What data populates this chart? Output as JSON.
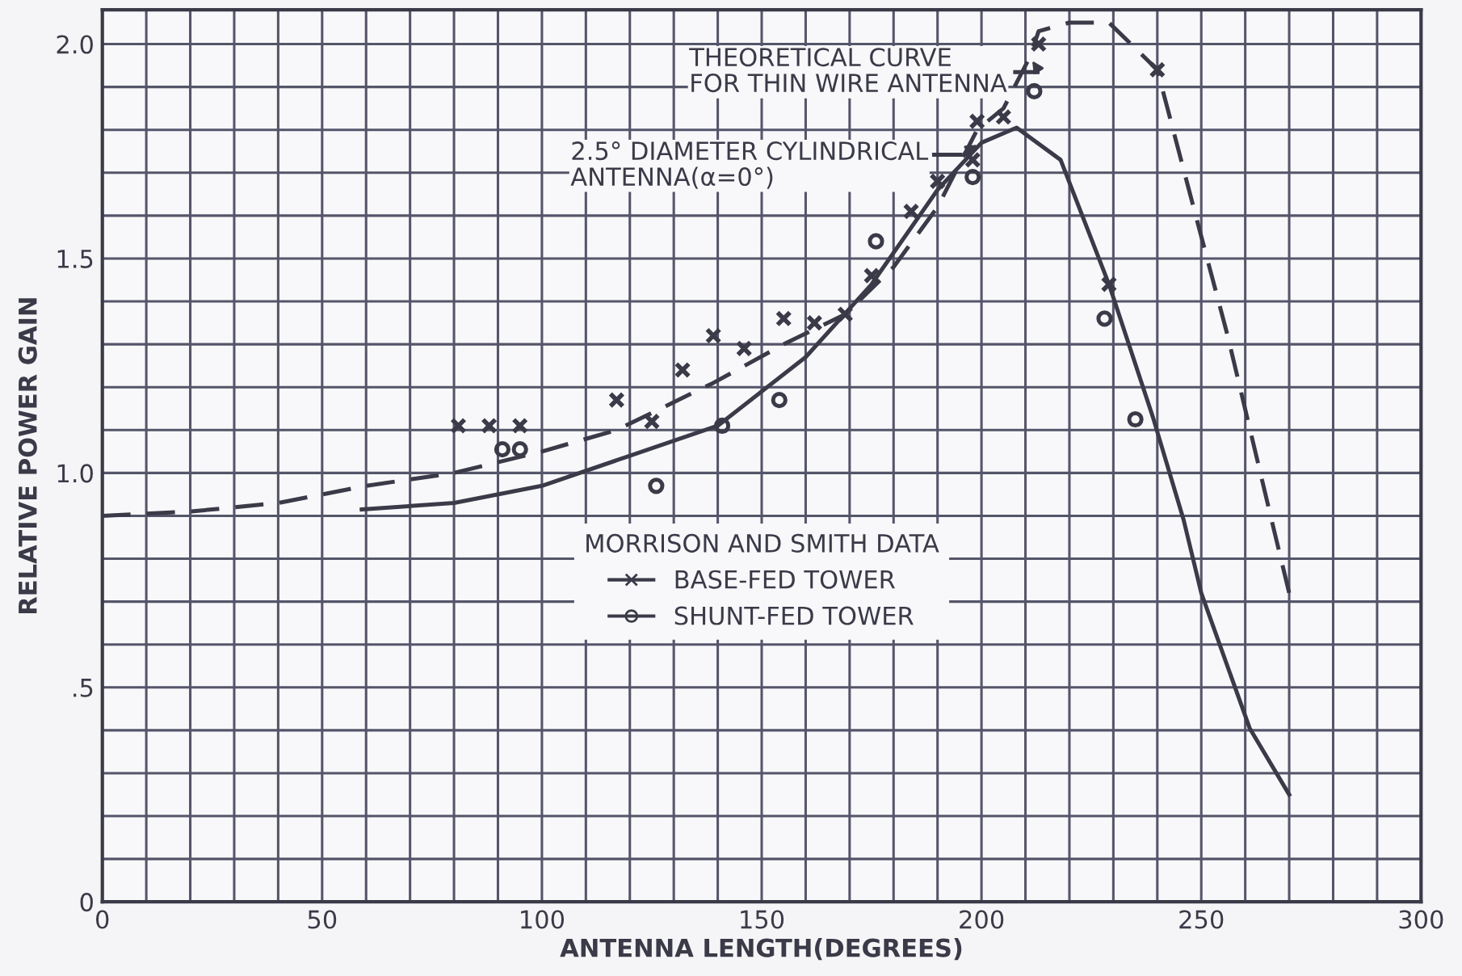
{
  "chart_data": {
    "type": "line",
    "xlabel": "ANTENNA LENGTH(DEGREES)",
    "ylabel": "RELATIVE POWER GAIN",
    "legend_title": "MORRISON AND SMITH DATA",
    "legend": "bottom",
    "grid": true,
    "xlim": [
      0,
      300
    ],
    "ylim": [
      0,
      2.08
    ],
    "xticks": [
      0,
      {
        "value": 10,
        "label": null
      },
      {
        "value": 20,
        "label": null
      },
      {
        "value": 30,
        "label": null
      },
      {
        "value": 40,
        "label": null
      },
      50,
      {
        "value": 60,
        "label": null
      },
      {
        "value": 70,
        "label": null
      },
      {
        "value": 80,
        "label": null
      },
      {
        "value": 90,
        "label": null
      },
      100,
      {
        "value": 110,
        "label": null
      },
      {
        "value": 120,
        "label": null
      },
      {
        "value": 130,
        "label": null
      },
      {
        "value": 140,
        "label": null
      },
      150,
      {
        "value": 160,
        "label": null
      },
      {
        "value": 170,
        "label": null
      },
      {
        "value": 180,
        "label": null
      },
      {
        "value": 190,
        "label": null
      },
      200,
      {
        "value": 210,
        "label": null
      },
      {
        "value": 220,
        "label": null
      },
      {
        "value": 230,
        "label": null
      },
      {
        "value": 240,
        "label": null
      },
      250,
      {
        "value": 260,
        "label": null
      },
      {
        "value": 270,
        "label": null
      },
      {
        "value": 280,
        "label": null
      },
      {
        "value": 290,
        "label": null
      },
      300
    ],
    "yticks": [
      0,
      {
        "value": 0.1,
        "label": null
      },
      {
        "value": 0.2,
        "label": null
      },
      {
        "value": 0.3,
        "label": null
      },
      {
        "value": 0.4,
        "label": null
      },
      {
        "value": 0.5,
        "label": ".5"
      },
      {
        "value": 0.6,
        "label": null
      },
      {
        "value": 0.7,
        "label": null
      },
      {
        "value": 0.8,
        "label": null
      },
      {
        "value": 0.9,
        "label": null
      },
      {
        "value": 1.0,
        "label": "1.0"
      },
      {
        "value": 1.1,
        "label": null
      },
      {
        "value": 1.2,
        "label": null
      },
      {
        "value": 1.3,
        "label": null
      },
      {
        "value": 1.4,
        "label": null
      },
      1.5,
      {
        "value": 1.6,
        "label": null
      },
      {
        "value": 1.7,
        "label": null
      },
      {
        "value": 1.8,
        "label": null
      },
      {
        "value": 1.9,
        "label": null
      },
      {
        "value": 2.0,
        "label": "2.0"
      }
    ],
    "series": [
      {
        "name": "THEORETICAL CURVE\nFOR THIN WIRE ANTENNA",
        "line_style": "dashed",
        "marker": "none",
        "color": "#3a3a48",
        "x": [
          0,
          20,
          40,
          60,
          80,
          100,
          117,
          139,
          155,
          169,
          180,
          190,
          199,
          205,
          211,
          213,
          220,
          229,
          240,
          249,
          256,
          266,
          270
        ],
        "values": [
          0.9,
          0.91,
          0.93,
          0.97,
          1.0,
          1.05,
          1.1,
          1.21,
          1.3,
          1.37,
          1.48,
          1.62,
          1.8,
          1.85,
          1.97,
          2.03,
          2.05,
          2.05,
          1.94,
          1.59,
          1.32,
          0.89,
          0.72
        ]
      },
      {
        "name": "2.5° DIAMETER CYLINDRICAL\nANTENNA(α=0°)",
        "line_style": "solid",
        "marker": "none",
        "color": "#3a3a48",
        "x": [
          59,
          80,
          100,
          120,
          140,
          160,
          175,
          190,
          200,
          208,
          218,
          229,
          239,
          246,
          250,
          261,
          270
        ],
        "values": [
          0.915,
          0.93,
          0.97,
          1.04,
          1.11,
          1.27,
          1.44,
          1.66,
          1.77,
          1.805,
          1.73,
          1.44,
          1.13,
          0.89,
          0.72,
          0.405,
          0.25
        ]
      },
      {
        "name": "BASE-FED TOWER",
        "type": "scatter",
        "marker": "cross",
        "color": "#3a3a48",
        "x": [
          81,
          88,
          95,
          117,
          125,
          132,
          139,
          146,
          155,
          162,
          169,
          175,
          184,
          190,
          198,
          199,
          205,
          213,
          229,
          240
        ],
        "values": [
          1.11,
          1.11,
          1.11,
          1.17,
          1.12,
          1.24,
          1.32,
          1.29,
          1.36,
          1.35,
          1.37,
          1.46,
          1.61,
          1.68,
          1.73,
          1.82,
          1.83,
          2.0,
          1.44,
          1.94
        ]
      },
      {
        "name": "SHUNT-FED TOWER",
        "type": "scatter",
        "marker": "circle",
        "color": "#3a3a48",
        "x": [
          91,
          95,
          126,
          141,
          154,
          176,
          198,
          212,
          228,
          235
        ],
        "values": [
          1.055,
          1.055,
          0.97,
          1.11,
          1.17,
          1.54,
          1.69,
          1.89,
          1.36,
          1.125
        ]
      }
    ]
  }
}
